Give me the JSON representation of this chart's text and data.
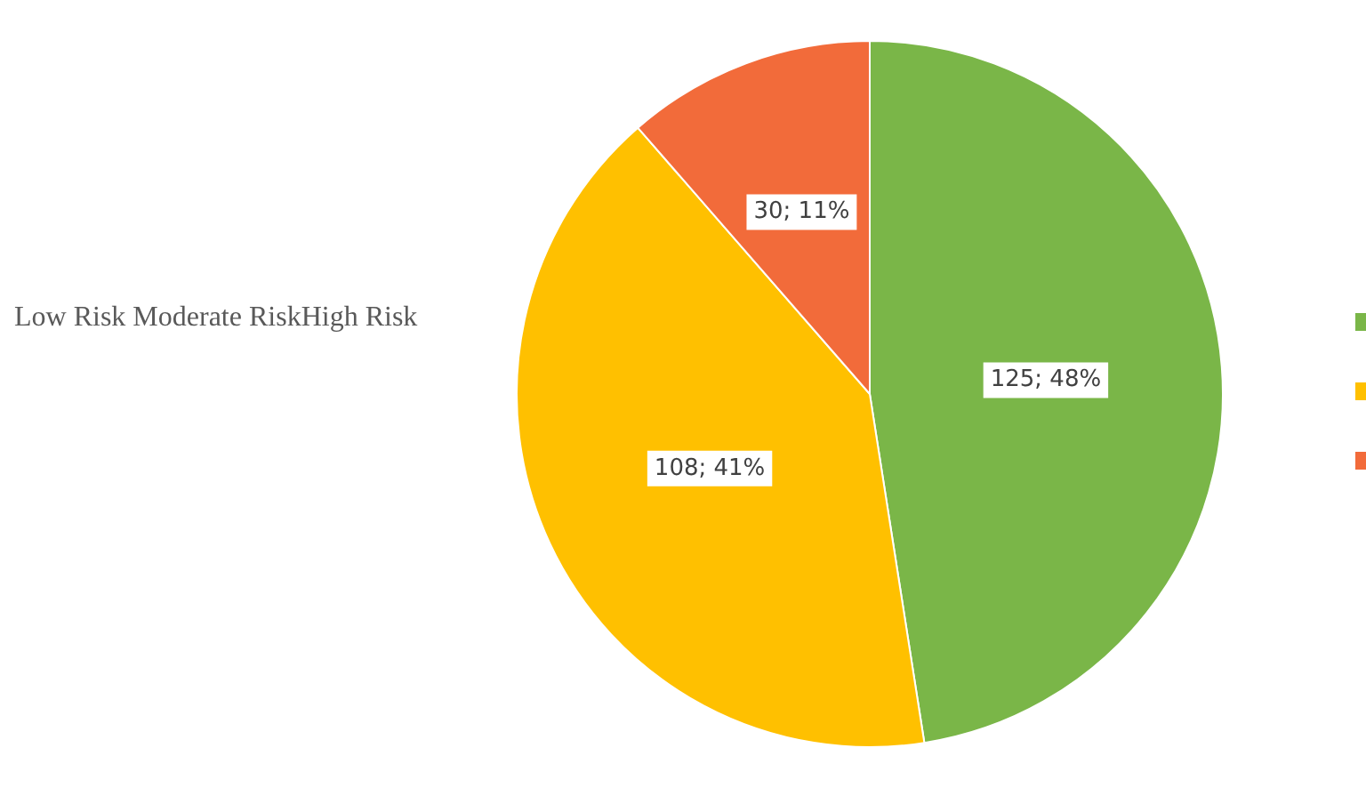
{
  "chart_data": {
    "type": "pie",
    "title": "Low Risk Moderate RiskHigh Risk",
    "categories": [
      null,
      null,
      null
    ],
    "values": [
      125,
      108,
      30
    ],
    "colors": [
      "#7ab648",
      "#ffc000",
      "#f26b3a"
    ],
    "value_labels": [
      "125; 48%",
      "108; 41%",
      "30; 11%"
    ]
  }
}
